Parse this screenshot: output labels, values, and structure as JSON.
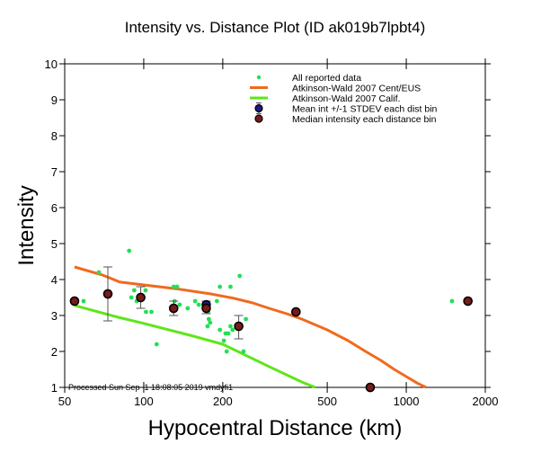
{
  "chart_data": {
    "type": "scatter",
    "title": "Intensity vs. Distance Plot (ID ak019b7lpbt4)",
    "xlabel": "Hypocentral Distance (km)",
    "ylabel": "Intensity",
    "xscale": "log",
    "xlim": [
      50,
      2000
    ],
    "ylim": [
      1,
      10
    ],
    "xticks": [
      50,
      100,
      200,
      500,
      1000,
      2000
    ],
    "xtick_labels": [
      "50",
      "100",
      "200",
      "500",
      "1000",
      "2000"
    ],
    "yticks": [
      1,
      2,
      3,
      4,
      5,
      6,
      7,
      8,
      9,
      10
    ],
    "ytick_labels": [
      "1",
      "2",
      "3",
      "4",
      "5",
      "6",
      "7",
      "8",
      "9",
      "10"
    ],
    "legend_position": "top-right",
    "annotation": "Processed Sun Sep  1 18:08:05 2019 vmdyfi1",
    "colors": {
      "reported": "#22e055",
      "cent_eus": "#f06a1e",
      "calif": "#5ee61a",
      "mean": "#1a1a80",
      "median": "#7a1a1a",
      "errorbar": "#555555"
    },
    "series": [
      {
        "name": "All reported data",
        "kind": "points",
        "x": [
          59,
          67.5,
          88,
          92,
          101.6,
          89.7,
          94,
          102,
          107,
          112,
          130,
          134,
          131,
          137,
          147,
          157,
          162,
          190,
          195,
          214,
          232,
          245,
          177,
          179,
          175,
          195,
          214,
          218,
          205,
          210,
          202,
          207,
          240,
          371,
          1493,
          729,
          176
        ],
        "y": [
          3.4,
          4.2,
          4.8,
          3.7,
          3.7,
          3.5,
          3.4,
          3.1,
          3.1,
          2.2,
          3.8,
          3.8,
          3.4,
          3.3,
          3.2,
          3.4,
          3.3,
          3.4,
          3.8,
          3.8,
          4.1,
          2.9,
          2.9,
          2.8,
          2.7,
          2.6,
          2.7,
          2.6,
          2.5,
          2.5,
          2.3,
          2.0,
          2.0,
          3.1,
          3.4,
          1.0,
          3.1
        ]
      },
      {
        "name": "Atkinson-Wald 2007 Cent/EUS",
        "kind": "line",
        "x": [
          54.5,
          70,
          81,
          100,
          137,
          180,
          220,
          260,
          300,
          350,
          400,
          500,
          600,
          700,
          800,
          900,
          1000,
          1100,
          1190
        ],
        "y": [
          4.35,
          4.12,
          3.93,
          3.85,
          3.73,
          3.6,
          3.48,
          3.35,
          3.2,
          3.05,
          2.9,
          2.6,
          2.3,
          2.0,
          1.75,
          1.5,
          1.3,
          1.12,
          1.0
        ]
      },
      {
        "name": "Atkinson-Wald 2007 Calif.",
        "kind": "line",
        "x": [
          54.5,
          80,
          100,
          150,
          200,
          300,
          400,
          450
        ],
        "y": [
          3.28,
          2.95,
          2.78,
          2.45,
          2.2,
          1.58,
          1.15,
          1.0
        ]
      },
      {
        "name": "Mean int +/-1 STDEV each dist bin",
        "kind": "errorbar",
        "x": [
          54.5,
          73,
          97.4,
          130,
          173,
          230,
          380,
          729,
          1717
        ],
        "y": [
          3.4,
          3.6,
          3.5,
          3.2,
          3.3,
          2.7,
          3.1,
          1.0,
          3.4
        ],
        "ylow": [
          3.4,
          2.85,
          3.2,
          3.0,
          3.05,
          2.35,
          3.1,
          1.0,
          3.4
        ],
        "yhigh": [
          3.4,
          4.35,
          3.8,
          3.4,
          3.4,
          3.0,
          3.1,
          1.0,
          3.4
        ]
      },
      {
        "name": "Median intensity each distance bin",
        "kind": "points",
        "x": [
          54.5,
          73,
          97.4,
          130,
          173,
          230,
          380,
          729,
          1717
        ],
        "y": [
          3.4,
          3.6,
          3.5,
          3.2,
          3.2,
          2.7,
          3.1,
          1.0,
          3.4
        ]
      }
    ]
  }
}
